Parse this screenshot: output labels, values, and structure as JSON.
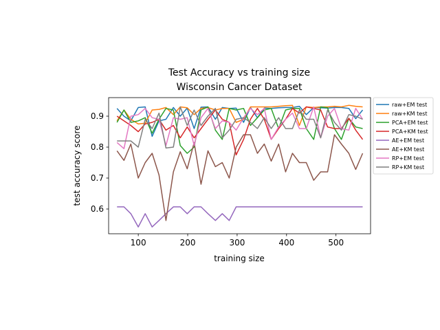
{
  "chart_data": {
    "type": "line",
    "title": "Test Accuracy vs training size",
    "subtitle": "Wisconsin Cancer Dataset",
    "xlabel": "training size",
    "ylabel": "test accuracy score",
    "xlim": [
      40,
      570
    ],
    "ylim": [
      0.52,
      0.96
    ],
    "xticks": [
      100,
      200,
      300,
      400,
      500
    ],
    "yticks": [
      0.6,
      0.7,
      0.8,
      0.9
    ],
    "grid": false,
    "legend_position": "outside right, top",
    "x": [
      57,
      71,
      85,
      100,
      114,
      128,
      142,
      156,
      171,
      185,
      199,
      213,
      227,
      241,
      256,
      270,
      284,
      298,
      313,
      327,
      341,
      355,
      369,
      384,
      398,
      412,
      426,
      440,
      455,
      469,
      483,
      497,
      511,
      526,
      540,
      554
    ],
    "series": [
      {
        "name": "raw+EM test",
        "color": "#1f77b4",
        "values": [
          0.925,
          0.9,
          0.885,
          0.928,
          0.93,
          0.835,
          0.885,
          0.89,
          0.928,
          0.9,
          0.926,
          0.86,
          0.929,
          0.93,
          0.89,
          0.928,
          0.925,
          0.926,
          0.88,
          0.928,
          0.895,
          0.926,
          0.925,
          0.927,
          0.928,
          0.928,
          0.932,
          0.905,
          0.928,
          0.927,
          0.926,
          0.928,
          0.928,
          0.925,
          0.892,
          0.92
        ]
      },
      {
        "name": "raw+KM test",
        "color": "#ff7f0e",
        "values": [
          0.885,
          0.92,
          0.89,
          0.875,
          0.877,
          0.92,
          0.922,
          0.928,
          0.905,
          0.93,
          0.927,
          0.905,
          0.925,
          0.928,
          0.92,
          0.925,
          0.925,
          0.88,
          0.89,
          0.93,
          0.93,
          0.93,
          0.93,
          0.932,
          0.934,
          0.935,
          0.87,
          0.93,
          0.928,
          0.93,
          0.93,
          0.932,
          0.93,
          0.935,
          0.932,
          0.93
        ]
      },
      {
        "name": "PCA+EM test",
        "color": "#2ca02c",
        "values": [
          0.88,
          0.92,
          0.88,
          0.885,
          0.895,
          0.845,
          0.89,
          0.925,
          0.92,
          0.805,
          0.78,
          0.8,
          0.92,
          0.93,
          0.855,
          0.825,
          0.925,
          0.92,
          0.925,
          0.87,
          0.895,
          0.92,
          0.925,
          0.86,
          0.92,
          0.925,
          0.925,
          0.86,
          0.825,
          0.93,
          0.927,
          0.86,
          0.825,
          0.893,
          0.865,
          0.86
        ]
      },
      {
        "name": "PCA+KM test",
        "color": "#d62728",
        "values": [
          0.9,
          0.885,
          0.87,
          0.85,
          0.875,
          0.88,
          0.89,
          0.855,
          0.87,
          0.83,
          0.865,
          0.83,
          0.86,
          0.89,
          0.92,
          0.89,
          0.88,
          0.775,
          0.825,
          0.89,
          0.925,
          0.89,
          0.825,
          0.86,
          0.89,
          0.925,
          0.91,
          0.93,
          0.925,
          0.92,
          0.865,
          0.86,
          0.86,
          0.893,
          0.855,
          0.825
        ]
      },
      {
        "name": "AE+EM test",
        "color": "#9467bd",
        "values": [
          0.607,
          0.607,
          0.585,
          0.542,
          0.585,
          0.542,
          0.563,
          0.585,
          0.607,
          0.607,
          0.585,
          0.607,
          0.607,
          0.585,
          0.563,
          0.585,
          0.563,
          0.607,
          0.607,
          0.607,
          0.607,
          0.607,
          0.607,
          0.607,
          0.607,
          0.607,
          0.607,
          0.607,
          0.607,
          0.607,
          0.607,
          0.607,
          0.607,
          0.607,
          0.607,
          0.607
        ]
      },
      {
        "name": "AE+KM test",
        "color": "#8c564b",
        "values": [
          0.788,
          0.757,
          0.81,
          0.7,
          0.75,
          0.78,
          0.71,
          0.563,
          0.72,
          0.785,
          0.73,
          0.815,
          0.68,
          0.788,
          0.737,
          0.75,
          0.7,
          0.8,
          0.84,
          0.84,
          0.78,
          0.81,
          0.755,
          0.81,
          0.72,
          0.78,
          0.75,
          0.75,
          0.693,
          0.72,
          0.72,
          0.84,
          0.81,
          0.78,
          0.728,
          0.78
        ]
      },
      {
        "name": "RP+EM test",
        "color": "#e377c2",
        "values": [
          0.815,
          0.795,
          0.9,
          0.905,
          0.925,
          0.895,
          0.89,
          0.805,
          0.895,
          0.89,
          0.895,
          0.805,
          0.895,
          0.925,
          0.86,
          0.885,
          0.88,
          0.855,
          0.895,
          0.925,
          0.905,
          0.925,
          0.825,
          0.865,
          0.89,
          0.91,
          0.86,
          0.86,
          0.93,
          0.83,
          0.9,
          0.925,
          0.86,
          0.855,
          0.925,
          0.89
        ]
      },
      {
        "name": "RP+KM test",
        "color": "#7f7f7f",
        "values": [
          0.82,
          0.82,
          0.82,
          0.8,
          0.89,
          0.86,
          0.91,
          0.797,
          0.8,
          0.93,
          0.87,
          0.92,
          0.87,
          0.9,
          0.925,
          0.83,
          0.855,
          0.89,
          0.895,
          0.88,
          0.86,
          0.895,
          0.86,
          0.895,
          0.86,
          0.86,
          0.92,
          0.89,
          0.89,
          0.83,
          0.92,
          0.88,
          0.855,
          0.905,
          0.9,
          0.89
        ]
      }
    ]
  }
}
